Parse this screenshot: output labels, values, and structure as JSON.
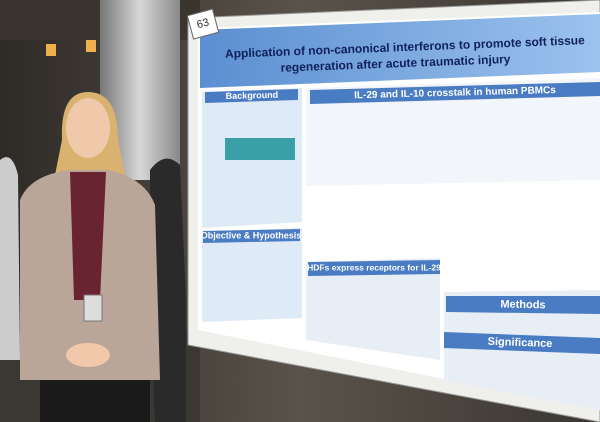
{
  "poster": {
    "number": "63",
    "title_lines": [
      "Application of non-canonical interferons to promote soft tissue",
      "regeneration after acute traumatic injury"
    ],
    "sections": [
      "Background",
      "IL-29 and IL-10 crosstalk in human PBMCs",
      "Objective & Hypothesis",
      "HDFs express receptors for IL-29",
      "Methods",
      "Significance"
    ]
  }
}
